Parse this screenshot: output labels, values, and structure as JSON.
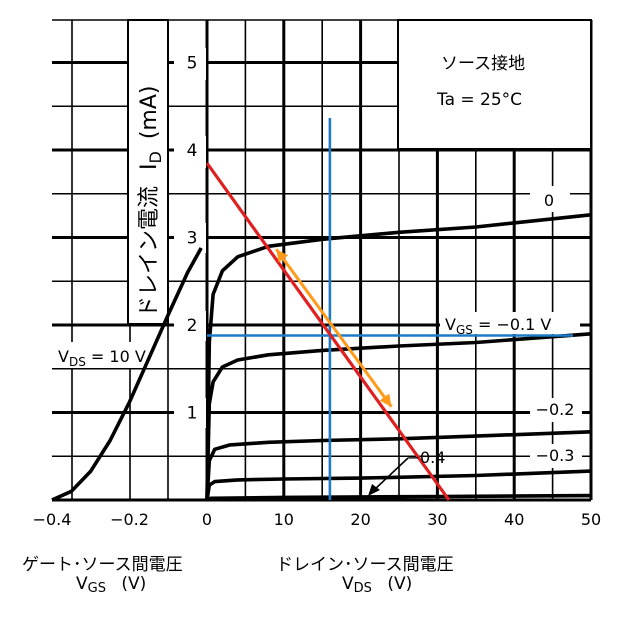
{
  "chart_data": [
    {
      "type": "line",
      "name": "transfer",
      "xlim": [
        -0.4,
        0
      ],
      "ylim": [
        0,
        5.5
      ],
      "x_ticks": [
        "−0.4",
        "−0.2",
        "0"
      ],
      "curve_label": "V_DS = 10 V",
      "curve_label_parts": {
        "v": "V",
        "sub": "DS",
        "rest": " = 10 V"
      },
      "points": [
        [
          -0.4,
          0.0
        ],
        [
          -0.35,
          0.1
        ],
        [
          -0.3,
          0.33
        ],
        [
          -0.25,
          0.68
        ],
        [
          -0.2,
          1.12
        ],
        [
          -0.15,
          1.62
        ],
        [
          -0.1,
          2.12
        ],
        [
          -0.05,
          2.6
        ],
        [
          -0.015,
          2.88
        ]
      ],
      "xlabel_jp": "ゲート･ソース間電圧",
      "xlabel_sym": {
        "v": "V",
        "sub": "GS",
        "unit": "(V)"
      }
    },
    {
      "type": "line",
      "name": "output_characteristics",
      "xlim": [
        0,
        50
      ],
      "ylim": [
        0,
        5.5
      ],
      "x_ticks": [
        "0",
        "10",
        "20",
        "30",
        "40",
        "50"
      ],
      "y_ticks": [
        "1",
        "2",
        "3",
        "4",
        "5"
      ],
      "ylabel_jp": "ドレイン電流",
      "ylabel_sym": {
        "v": "I",
        "sub": "D",
        "unit": "(mA)"
      },
      "xlabel_jp": "ドレイン･ソース間電圧",
      "xlabel_sym": {
        "v": "V",
        "sub": "DS",
        "unit": "(V)"
      },
      "series": [
        {
          "name": "0",
          "points": [
            [
              0,
              0
            ],
            [
              0.3,
              1.8
            ],
            [
              0.8,
              2.35
            ],
            [
              2,
              2.62
            ],
            [
              4,
              2.78
            ],
            [
              8,
              2.9
            ],
            [
              15,
              2.98
            ],
            [
              25,
              3.06
            ],
            [
              35,
              3.12
            ],
            [
              50,
              3.26
            ]
          ]
        },
        {
          "name": "V_GS = −0.1 V",
          "points": [
            [
              0,
              0
            ],
            [
              0.3,
              1.1
            ],
            [
              0.8,
              1.35
            ],
            [
              2,
              1.52
            ],
            [
              4,
              1.6
            ],
            [
              8,
              1.66
            ],
            [
              15,
              1.71
            ],
            [
              25,
              1.76
            ],
            [
              35,
              1.8
            ],
            [
              50,
              1.9
            ]
          ]
        },
        {
          "name": "−0.2",
          "points": [
            [
              0,
              0
            ],
            [
              0.3,
              0.45
            ],
            [
              1,
              0.58
            ],
            [
              3,
              0.63
            ],
            [
              8,
              0.66
            ],
            [
              15,
              0.68
            ],
            [
              25,
              0.7
            ],
            [
              35,
              0.73
            ],
            [
              50,
              0.78
            ]
          ]
        },
        {
          "name": "−0.3",
          "points": [
            [
              0,
              0
            ],
            [
              0.3,
              0.17
            ],
            [
              1,
              0.21
            ],
            [
              4,
              0.23
            ],
            [
              10,
              0.24
            ],
            [
              20,
              0.25
            ],
            [
              35,
              0.28
            ],
            [
              50,
              0.33
            ]
          ]
        },
        {
          "name": "−0.4",
          "points": [
            [
              0,
              0
            ],
            [
              0.5,
              0.02
            ],
            [
              10,
              0.03
            ],
            [
              30,
              0.04
            ],
            [
              50,
              0.05
            ]
          ]
        }
      ],
      "load_line": {
        "points": [
          [
            0,
            3.85
          ],
          [
            31.5,
            0
          ]
        ],
        "color": "#e02020"
      },
      "operating_point": {
        "x": 16,
        "y": 1.88,
        "color": "#1e7ac8"
      },
      "swing_arrow": {
        "from": [
          8.5,
          2.9
        ],
        "to": [
          23.5,
          1.1
        ],
        "color": "#ff9a1a"
      },
      "annotations": {
        "vgs_label": {
          "v": "V",
          "sub": "GS",
          "rest": " = −0.1 V"
        },
        "series_labels": [
          "0",
          "−0.2",
          "−0.3",
          "−0.4"
        ],
        "conditions": [
          "ソース接地",
          "Ta = 25°C"
        ]
      }
    }
  ]
}
